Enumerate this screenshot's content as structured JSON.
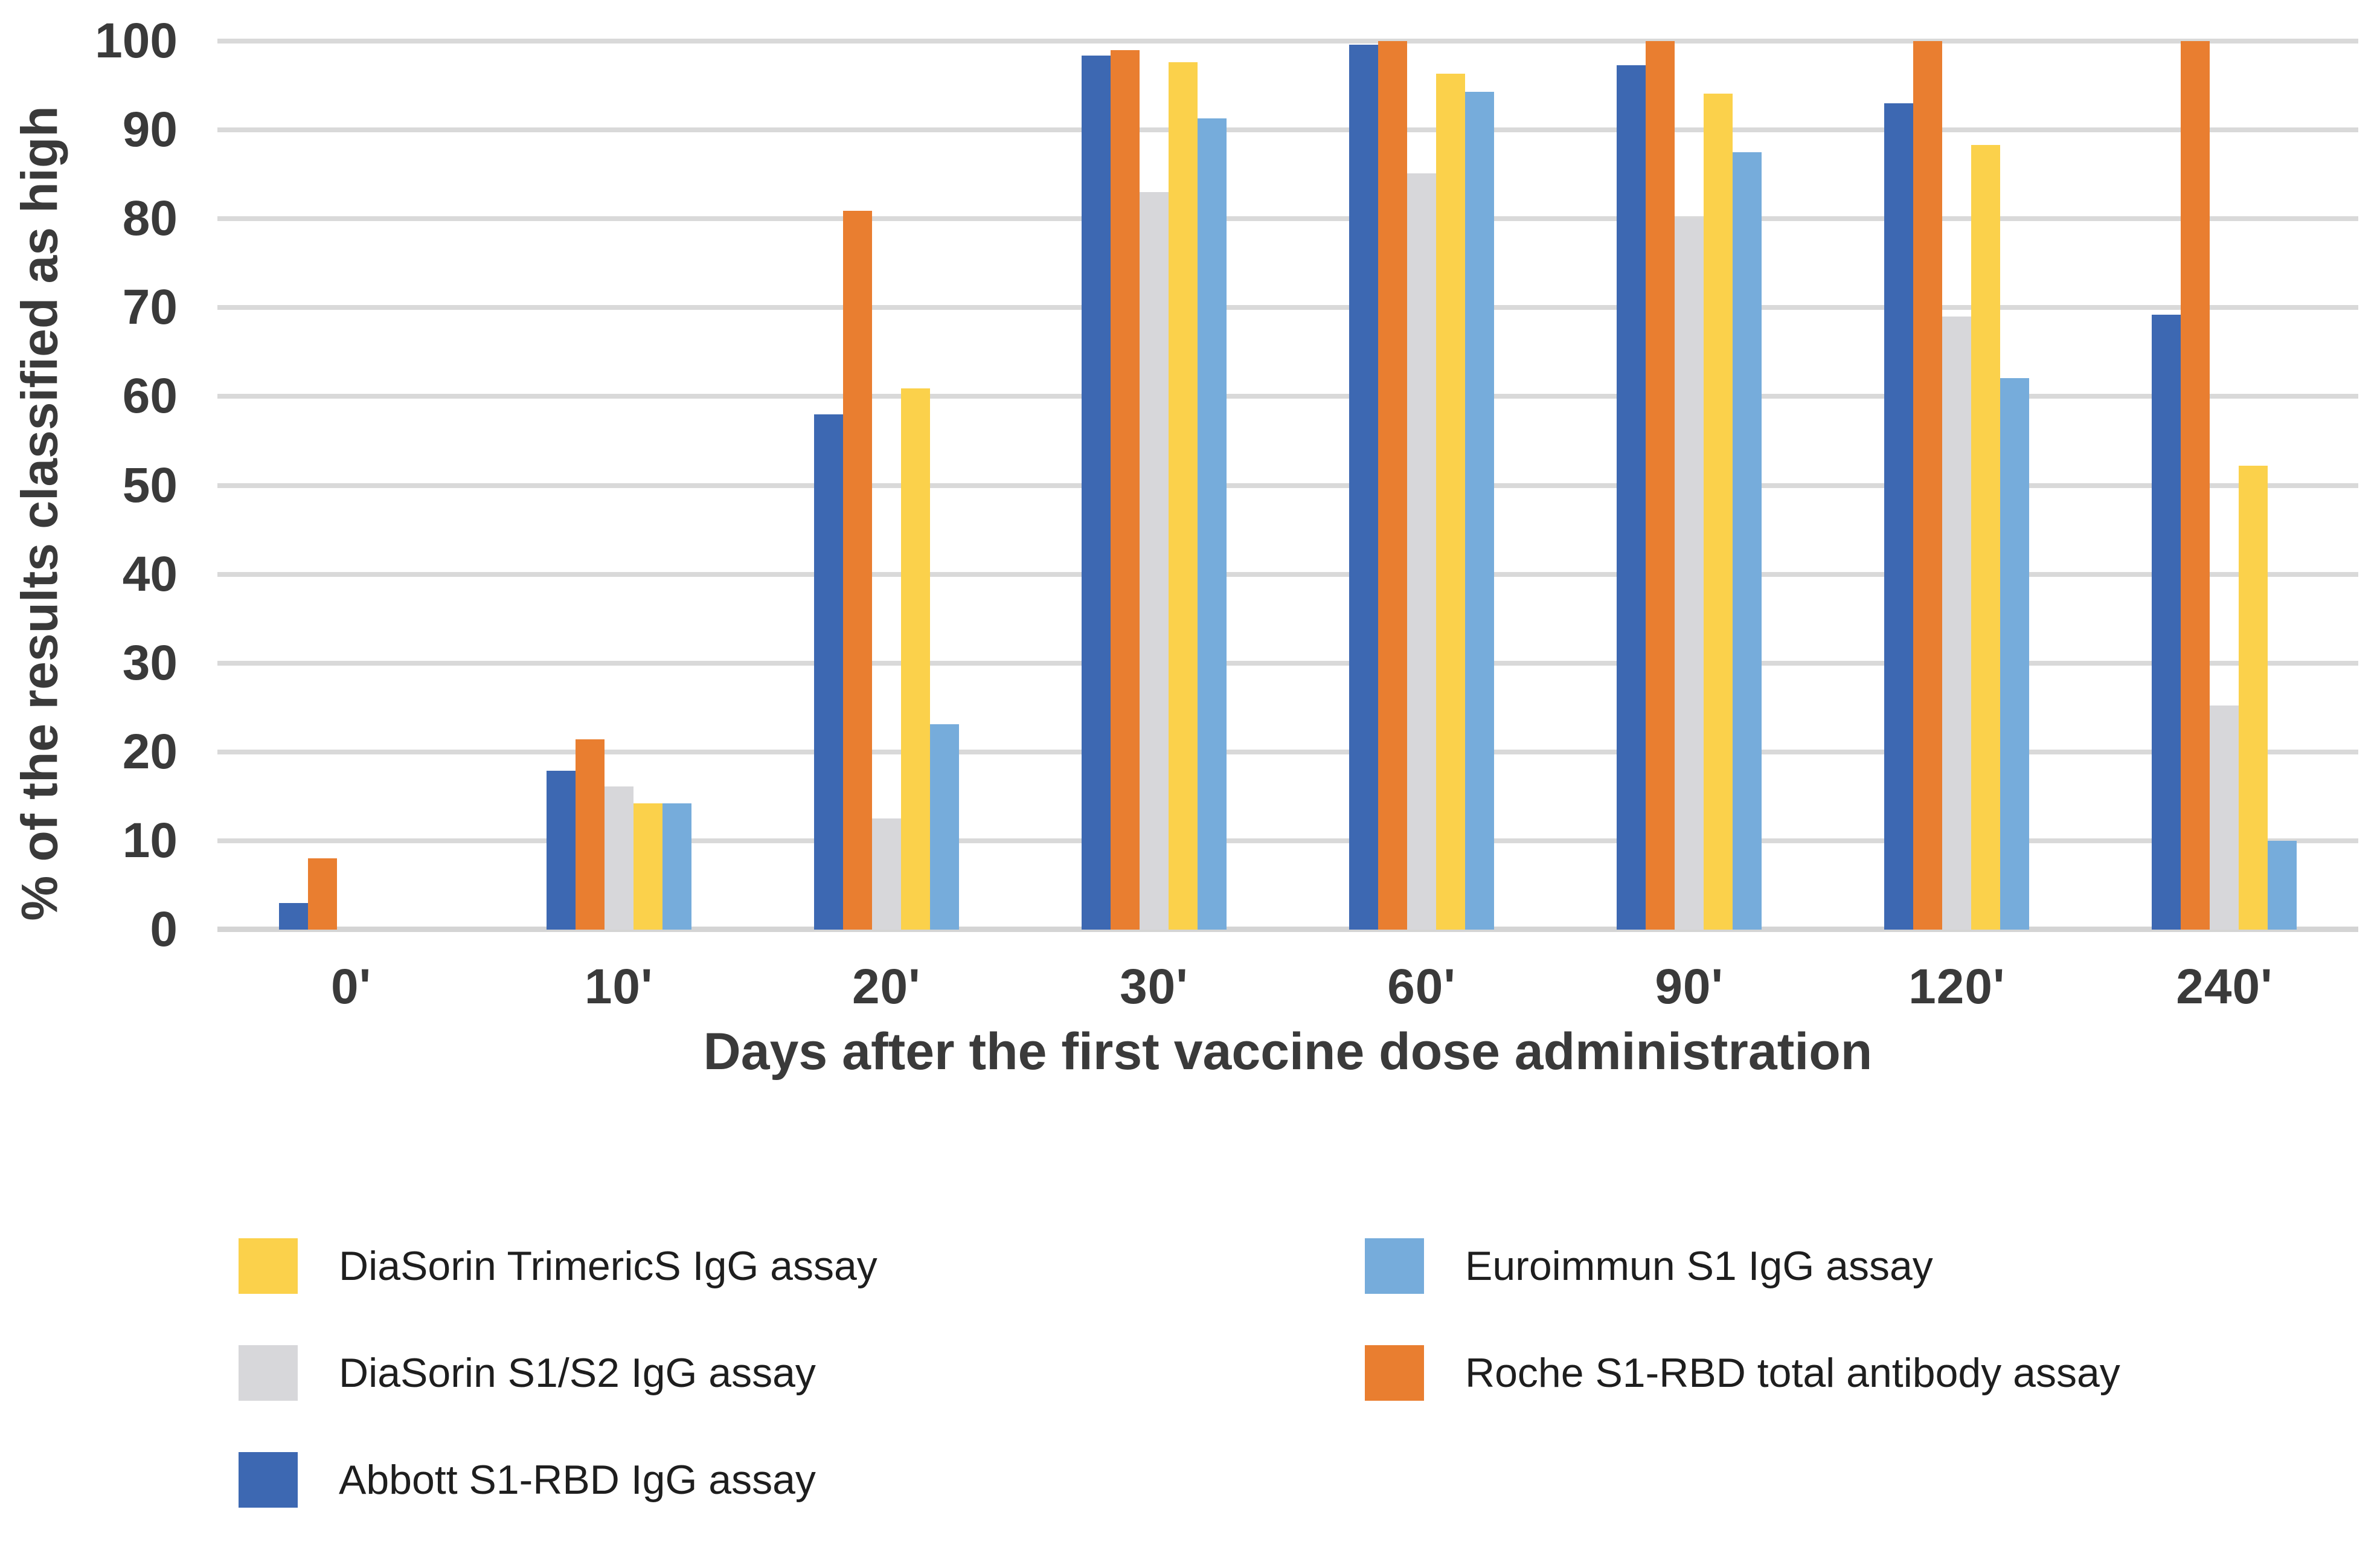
{
  "chart_data": {
    "type": "bar",
    "title": "",
    "xlabel": "Days after the first vaccine dose administration",
    "ylabel": "% of the results classified as high",
    "categories": [
      "0'",
      "10'",
      "20'",
      "30'",
      "60'",
      "90'",
      "120'",
      "240'"
    ],
    "series": [
      {
        "key": "abbott",
        "name": "Abbott S1-RBD IgG assay",
        "color": "#3D68B2",
        "values": [
          3.0,
          17.9,
          58.0,
          98.4,
          99.6,
          97.3,
          93.0,
          69.2
        ]
      },
      {
        "key": "roche",
        "name": "Roche S1-RBD total antibody assay",
        "color": "#E97E30",
        "values": [
          8.0,
          21.4,
          80.9,
          99.0,
          100.0,
          100.0,
          100.0,
          100.0
        ]
      },
      {
        "key": "s1s2",
        "name": "DiaSorin S1/S2 IgG assay",
        "color": "#D7D7DA",
        "values": [
          0.0,
          16.1,
          12.5,
          83.0,
          85.1,
          80.0,
          69.0,
          25.2
        ]
      },
      {
        "key": "trimerics",
        "name": "DiaSorin TrimericS IgG assay",
        "color": "#FBD14B",
        "values": [
          0.0,
          14.2,
          60.9,
          97.6,
          96.3,
          94.1,
          88.3,
          52.2
        ]
      },
      {
        "key": "euroimmun",
        "name": "Euroimmun S1 IgG assay",
        "color": "#76ACDB",
        "values": [
          0.0,
          14.2,
          23.1,
          91.3,
          94.3,
          87.5,
          62.1,
          10.0
        ]
      }
    ],
    "ylim": [
      0,
      100
    ],
    "yticks": [
      0,
      10,
      20,
      30,
      40,
      50,
      60,
      70,
      80,
      90,
      100
    ],
    "grid": true,
    "legend_position": "bottom"
  },
  "legend": {
    "columns": [
      [
        "trimerics",
        "s1s2",
        "abbott"
      ],
      [
        "euroimmun",
        "roche"
      ]
    ]
  },
  "style": {
    "gridline_color": "#D9D9D9",
    "tick_label_color": "#3A3A3A",
    "legend_text_color": "#1E1E1E",
    "background": "#FFFFFF"
  }
}
